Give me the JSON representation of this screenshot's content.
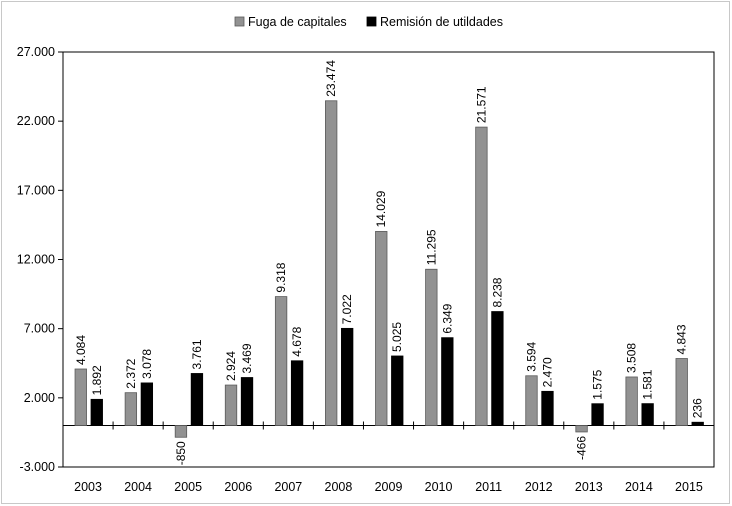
{
  "chart_data": {
    "type": "bar",
    "categories": [
      "2003",
      "2004",
      "2005",
      "2006",
      "2007",
      "2008",
      "2009",
      "2010",
      "2011",
      "2012",
      "2013",
      "2014",
      "2015"
    ],
    "series": [
      {
        "name": "Fuga de capitales",
        "color": "#929292",
        "values": [
          4084,
          2372,
          -850,
          2924,
          9318,
          23474,
          14029,
          11295,
          21571,
          3594,
          -466,
          3508,
          4843
        ],
        "labels": [
          "4.084",
          "2.372",
          "-850",
          "2.924",
          "9.318",
          "23.474",
          "14.029",
          "11.295",
          "21.571",
          "3.594",
          "-466",
          "3.508",
          "4.843"
        ]
      },
      {
        "name": "Remisión de utildades",
        "color": "#000000",
        "values": [
          1892,
          3078,
          3761,
          3469,
          4678,
          7022,
          5025,
          6349,
          8238,
          2470,
          1575,
          1581,
          236
        ],
        "labels": [
          "1.892",
          "3.078",
          "3.761",
          "3.469",
          "4.678",
          "7.022",
          "5.025",
          "6.349",
          "8.238",
          "2.470",
          "1.575",
          "1.581",
          "236"
        ]
      }
    ],
    "yticks": [
      27000,
      22000,
      17000,
      12000,
      7000,
      2000,
      -3000
    ],
    "ytick_labels": [
      "27.000",
      "22.000",
      "17.000",
      "12.000",
      "7.000",
      "2.000",
      "-3.000"
    ],
    "ylim": [
      -3000,
      27000
    ],
    "title": "",
    "xlabel": "",
    "ylabel": "",
    "grid": false,
    "legend": "top-center"
  }
}
